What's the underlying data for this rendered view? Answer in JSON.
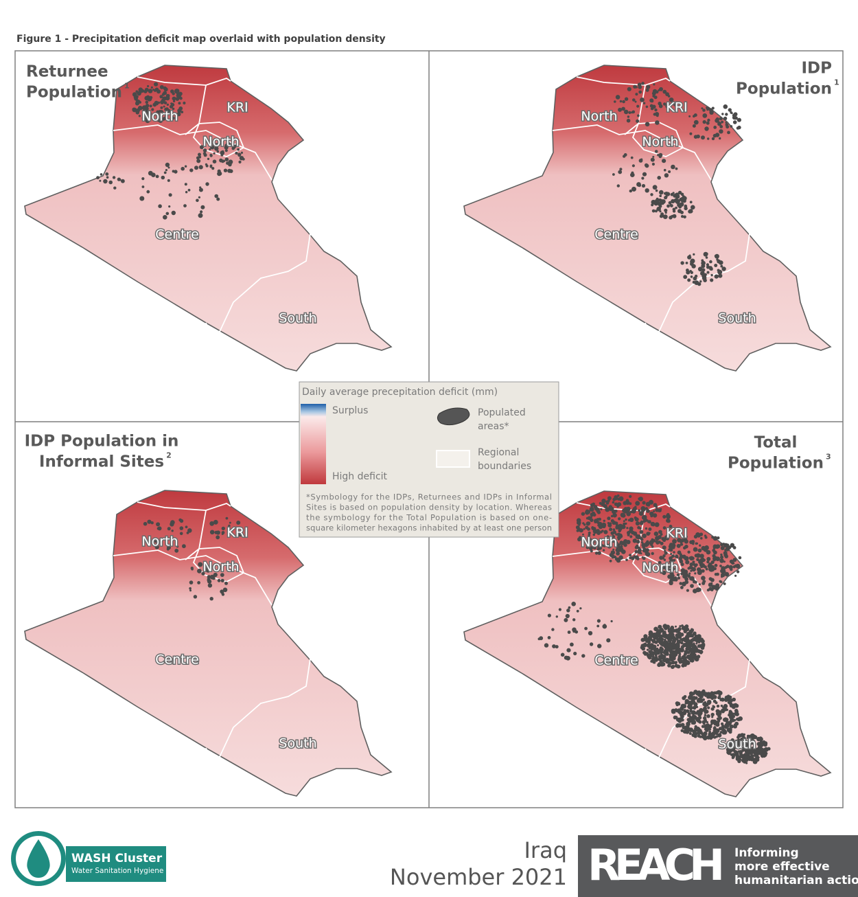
{
  "figure_title": "Figure 1 - Precipitation deficit map overlaid with population density",
  "panels": [
    {
      "title_lines": [
        "Returnee",
        "Population"
      ],
      "note": "1"
    },
    {
      "title_lines": [
        "IDP",
        "Population"
      ],
      "note": "1"
    },
    {
      "title_lines": [
        "IDP Population in",
        "Informal Sites"
      ],
      "note": "2"
    },
    {
      "title_lines": [
        "Total",
        "Population"
      ],
      "note": "3"
    }
  ],
  "map": {
    "regions": [
      "North",
      "KRI",
      "Centre",
      "South"
    ]
  },
  "legend": {
    "title": "Daily average precepitation deficit (mm)",
    "low": "Surplus",
    "high": "High deficit",
    "populated": [
      "Populated",
      "areas*"
    ],
    "boundaries": [
      "Regional",
      "boundaries"
    ],
    "note": [
      "*Symbology for the IDPs, Returnees and IDPs in Informal",
      "Sites is based on population density by location. Whereas",
      "the symbology for the Total Population is based on one-",
      "square kilometer hexagons inhabited by at least one person"
    ]
  },
  "footer": {
    "place": "Iraq",
    "date": "November 2021",
    "wash": {
      "name": "WASH Cluster",
      "sub": "Water Sanitation Hygiene"
    },
    "reach": {
      "name": "REACH",
      "tagline": [
        "Informing",
        "more effective",
        "humanitarian action"
      ]
    }
  }
}
